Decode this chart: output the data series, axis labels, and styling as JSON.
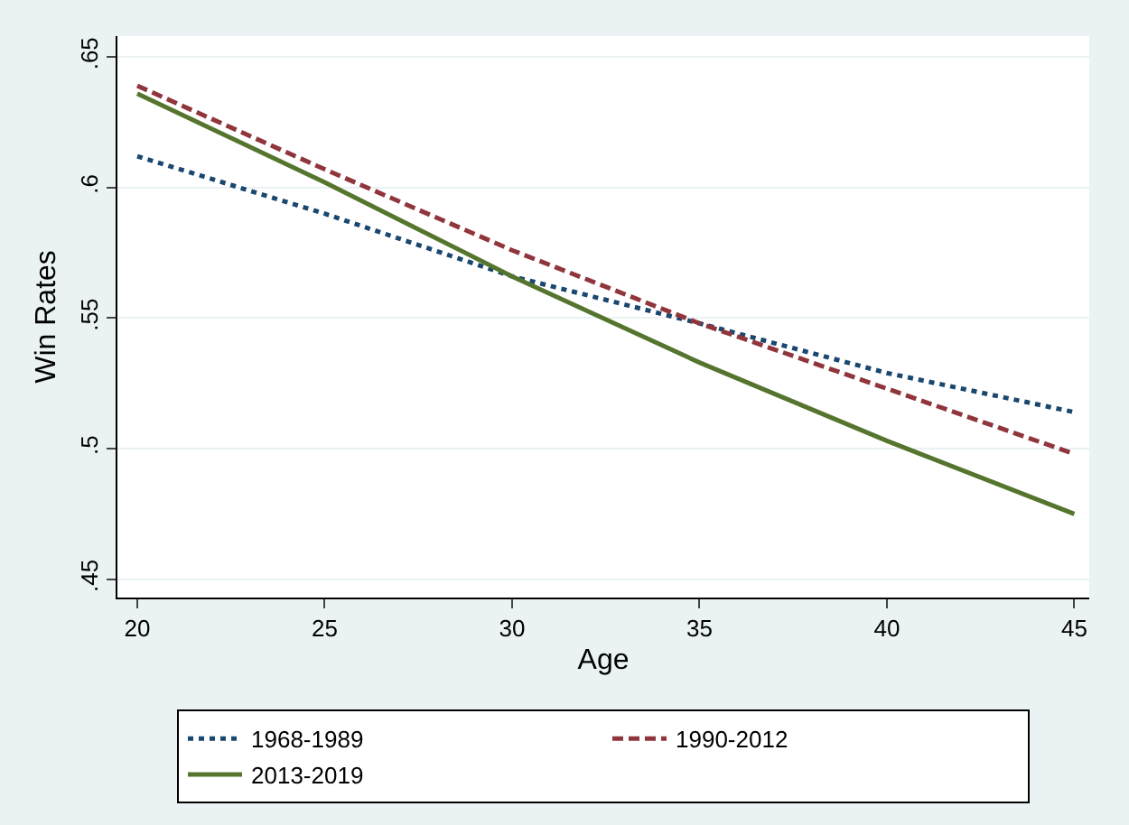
{
  "chart_data": {
    "type": "line",
    "xlabel": "Age",
    "ylabel": "Win Rates",
    "x": [
      20,
      25,
      30,
      35,
      40,
      45
    ],
    "series": [
      {
        "name": "1968-1989",
        "color": "#1a476f",
        "line_style": "dotted",
        "values": [
          0.612,
          0.59,
          0.566,
          0.548,
          0.529,
          0.514
        ]
      },
      {
        "name": "1990-2012",
        "color": "#90353b",
        "line_style": "dashed",
        "values": [
          0.639,
          0.607,
          0.576,
          0.548,
          0.523,
          0.498
        ]
      },
      {
        "name": "2013-2019",
        "color": "#55752f",
        "line_style": "solid",
        "values": [
          0.636,
          0.602,
          0.566,
          0.533,
          0.503,
          0.475
        ]
      }
    ],
    "xlim": [
      19.47,
      45.4
    ],
    "xticks": [
      20,
      25,
      30,
      35,
      40,
      45
    ],
    "ylim": [
      0.443,
      0.658
    ],
    "yticks": [
      {
        "value": 0.45,
        "label": ".45"
      },
      {
        "value": 0.5,
        "label": ".5"
      },
      {
        "value": 0.55,
        "label": ".55"
      },
      {
        "value": 0.6,
        "label": ".6"
      },
      {
        "value": 0.65,
        "label": ".65"
      }
    ],
    "grid": "y",
    "legend": "bottom",
    "marker": "none"
  }
}
